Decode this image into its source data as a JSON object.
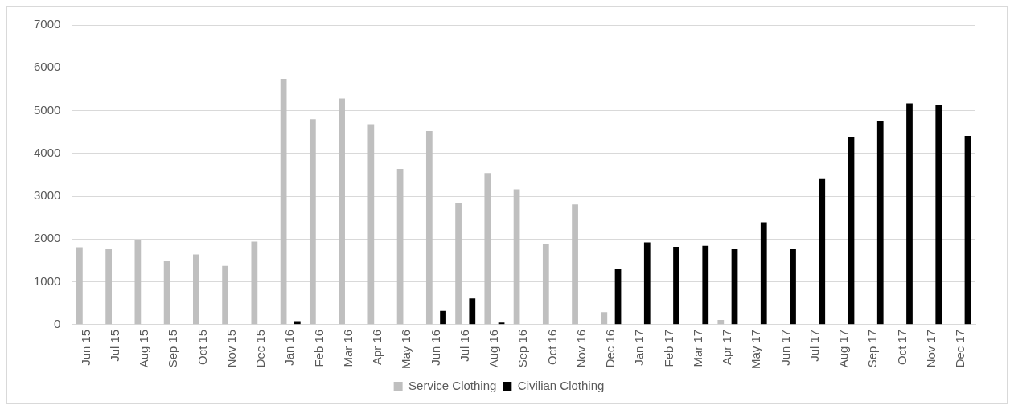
{
  "chart_data": {
    "type": "bar",
    "categories": [
      "Jun 15",
      "Jul 15",
      "Aug 15",
      "Sep 15",
      "Oct 15",
      "Nov 15",
      "Dec 15",
      "Jan 16",
      "Feb 16",
      "Mar 16",
      "Apr 16",
      "May 16",
      "Jun 16",
      "Jul 16",
      "Aug 16",
      "Sep 16",
      "Oct 16",
      "Nov 16",
      "Dec 16",
      "Jan 17",
      "Feb 17",
      "Mar 17",
      "Apr 17",
      "May 17",
      "Jun 17",
      "Jul 17",
      "Aug 17",
      "Sep 17",
      "Oct 17",
      "Nov 17",
      "Dec 17"
    ],
    "series": [
      {
        "name": "Service Clothing",
        "color": "#bfbfbf",
        "values": [
          1810,
          1760,
          1980,
          1480,
          1640,
          1370,
          1940,
          5740,
          4800,
          5280,
          4680,
          3640,
          4520,
          2830,
          3540,
          3160,
          1880,
          2810,
          290,
          null,
          0,
          0,
          110,
          null,
          null,
          0,
          0,
          null,
          null,
          0,
          null
        ]
      },
      {
        "name": "Civilian Clothing",
        "color": "#000000",
        "values": [
          0,
          0,
          0,
          0,
          0,
          0,
          0,
          80,
          0,
          0,
          0,
          0,
          320,
          610,
          50,
          0,
          0,
          0,
          1300,
          1920,
          1820,
          1840,
          1760,
          2390,
          1760,
          3400,
          4390,
          4750,
          5170,
          5130,
          4410
        ]
      }
    ],
    "ylim": [
      0,
      7000
    ],
    "yticks": [
      0,
      1000,
      2000,
      3000,
      4000,
      5000,
      6000,
      7000
    ],
    "grid": "y",
    "legend": "bottom"
  }
}
